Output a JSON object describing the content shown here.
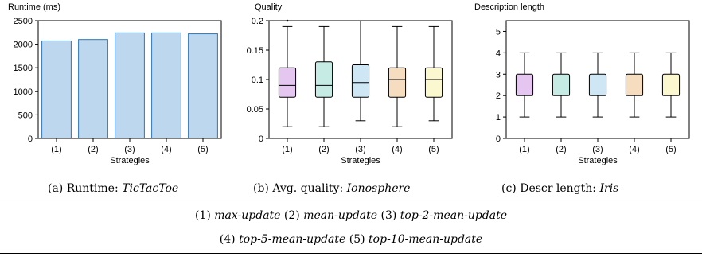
{
  "chart_data": [
    {
      "type": "bar",
      "title": "Runtime (ms)",
      "xlabel": "Strategies",
      "ylabel": "",
      "categories": [
        "(1)",
        "(2)",
        "(3)",
        "(4)",
        "(5)"
      ],
      "values": [
        2070,
        2100,
        2240,
        2240,
        2220
      ],
      "ylim": [
        0,
        2500
      ],
      "yticks": [
        0,
        500,
        1000,
        1500,
        2000,
        2500
      ],
      "color": "#bdd7ee",
      "edge_color": "#2e75b6",
      "caption_prefix": "(a) Runtime: ",
      "caption_dataset": "TicTacToe"
    },
    {
      "type": "box",
      "title": "Quality",
      "xlabel": "Strategies",
      "ylabel": "",
      "categories": [
        "(1)",
        "(2)",
        "(3)",
        "(4)",
        "(5)"
      ],
      "boxes": [
        {
          "whisker_low": 0.02,
          "q1": 0.07,
          "median": 0.09,
          "q3": 0.12,
          "whisker_high": 0.19,
          "outliers": [
            0.2
          ]
        },
        {
          "whisker_low": 0.02,
          "q1": 0.07,
          "median": 0.09,
          "q3": 0.13,
          "whisker_high": 0.19,
          "outliers": []
        },
        {
          "whisker_low": 0.03,
          "q1": 0.07,
          "median": 0.095,
          "q3": 0.125,
          "whisker_high": 0.2,
          "outliers": []
        },
        {
          "whisker_low": 0.02,
          "q1": 0.07,
          "median": 0.1,
          "q3": 0.12,
          "whisker_high": 0.19,
          "outliers": []
        },
        {
          "whisker_low": 0.03,
          "q1": 0.07,
          "median": 0.1,
          "q3": 0.12,
          "whisker_high": 0.19,
          "outliers": []
        }
      ],
      "ylim": [
        0,
        0.2
      ],
      "yticks": [
        "0",
        "0.05",
        "0.1",
        "0.15",
        "0.2"
      ],
      "box_colors": [
        "#e4c6f0",
        "#c6ebe4",
        "#cfe6f5",
        "#f7ddbf",
        "#fbf7cf"
      ],
      "caption_prefix": "(b) Avg. quality: ",
      "caption_dataset": "Ionosphere"
    },
    {
      "type": "box",
      "title": "Description length",
      "xlabel": "Strategies",
      "ylabel": "",
      "categories": [
        "(1)",
        "(2)",
        "(3)",
        "(4)",
        "(5)"
      ],
      "boxes": [
        {
          "whisker_low": 1,
          "q1": 2,
          "median": 2,
          "q3": 3,
          "whisker_high": 4,
          "outliers": []
        },
        {
          "whisker_low": 1,
          "q1": 2,
          "median": 2,
          "q3": 3,
          "whisker_high": 4,
          "outliers": []
        },
        {
          "whisker_low": 1,
          "q1": 2,
          "median": 2,
          "q3": 3,
          "whisker_high": 4,
          "outliers": []
        },
        {
          "whisker_low": 1,
          "q1": 2,
          "median": 2,
          "q3": 3,
          "whisker_high": 4,
          "outliers": []
        },
        {
          "whisker_low": 1,
          "q1": 2,
          "median": 2,
          "q3": 3,
          "whisker_high": 4,
          "outliers": []
        }
      ],
      "ylim": [
        0,
        5.5
      ],
      "yticks": [
        "0",
        "1",
        "2",
        "3",
        "4",
        "5"
      ],
      "box_colors": [
        "#e4c6f0",
        "#c6ebe4",
        "#cfe6f5",
        "#f7ddbf",
        "#fbf7cf"
      ],
      "caption_prefix": "(c) Descr length: ",
      "caption_dataset": "Iris"
    }
  ],
  "legend": {
    "line1": [
      {
        "num": "(1) ",
        "name": "max-update"
      },
      {
        "num": " (2) ",
        "name": "mean-update"
      },
      {
        "num": " (3) ",
        "name": "top-2-mean-update"
      }
    ],
    "line2": [
      {
        "num": "(4) ",
        "name": "top-5-mean-update"
      },
      {
        "num": " (5) ",
        "name": "top-10-mean-update"
      }
    ]
  }
}
